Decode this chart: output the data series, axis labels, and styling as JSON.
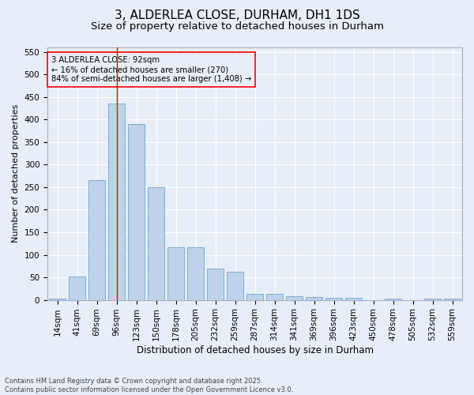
{
  "title1": "3, ALDERLEA CLOSE, DURHAM, DH1 1DS",
  "title2": "Size of property relative to detached houses in Durham",
  "xlabel": "Distribution of detached houses by size in Durham",
  "ylabel": "Number of detached properties",
  "categories": [
    "14sqm",
    "41sqm",
    "69sqm",
    "96sqm",
    "123sqm",
    "150sqm",
    "178sqm",
    "205sqm",
    "232sqm",
    "259sqm",
    "287sqm",
    "314sqm",
    "341sqm",
    "369sqm",
    "396sqm",
    "423sqm",
    "450sqm",
    "478sqm",
    "505sqm",
    "532sqm",
    "559sqm"
  ],
  "values": [
    3,
    52,
    265,
    435,
    390,
    250,
    117,
    117,
    70,
    63,
    13,
    13,
    8,
    7,
    5,
    4,
    0,
    3,
    0,
    3,
    3
  ],
  "bar_color": "#bed3ea",
  "bar_edge_color": "#7aadd4",
  "red_line_index": 3,
  "annotation_line1": "3 ALDERLEA CLOSE: 92sqm",
  "annotation_line2": "← 16% of detached houses are smaller (270)",
  "annotation_line3": "84% of semi-detached houses are larger (1,408) →",
  "ylim": [
    0,
    560
  ],
  "yticks": [
    0,
    50,
    100,
    150,
    200,
    250,
    300,
    350,
    400,
    450,
    500,
    550
  ],
  "footer1": "Contains HM Land Registry data © Crown copyright and database right 2025.",
  "footer2": "Contains public sector information licensed under the Open Government Licence v3.0.",
  "bg_color": "#e8eef7",
  "grid_color": "#ffffff",
  "title1_fontsize": 11,
  "title2_fontsize": 9.5,
  "ylabel_fontsize": 8,
  "xlabel_fontsize": 8.5,
  "tick_fontsize": 7.5,
  "annotation_fontsize": 7.2,
  "footer_fontsize": 6.0
}
